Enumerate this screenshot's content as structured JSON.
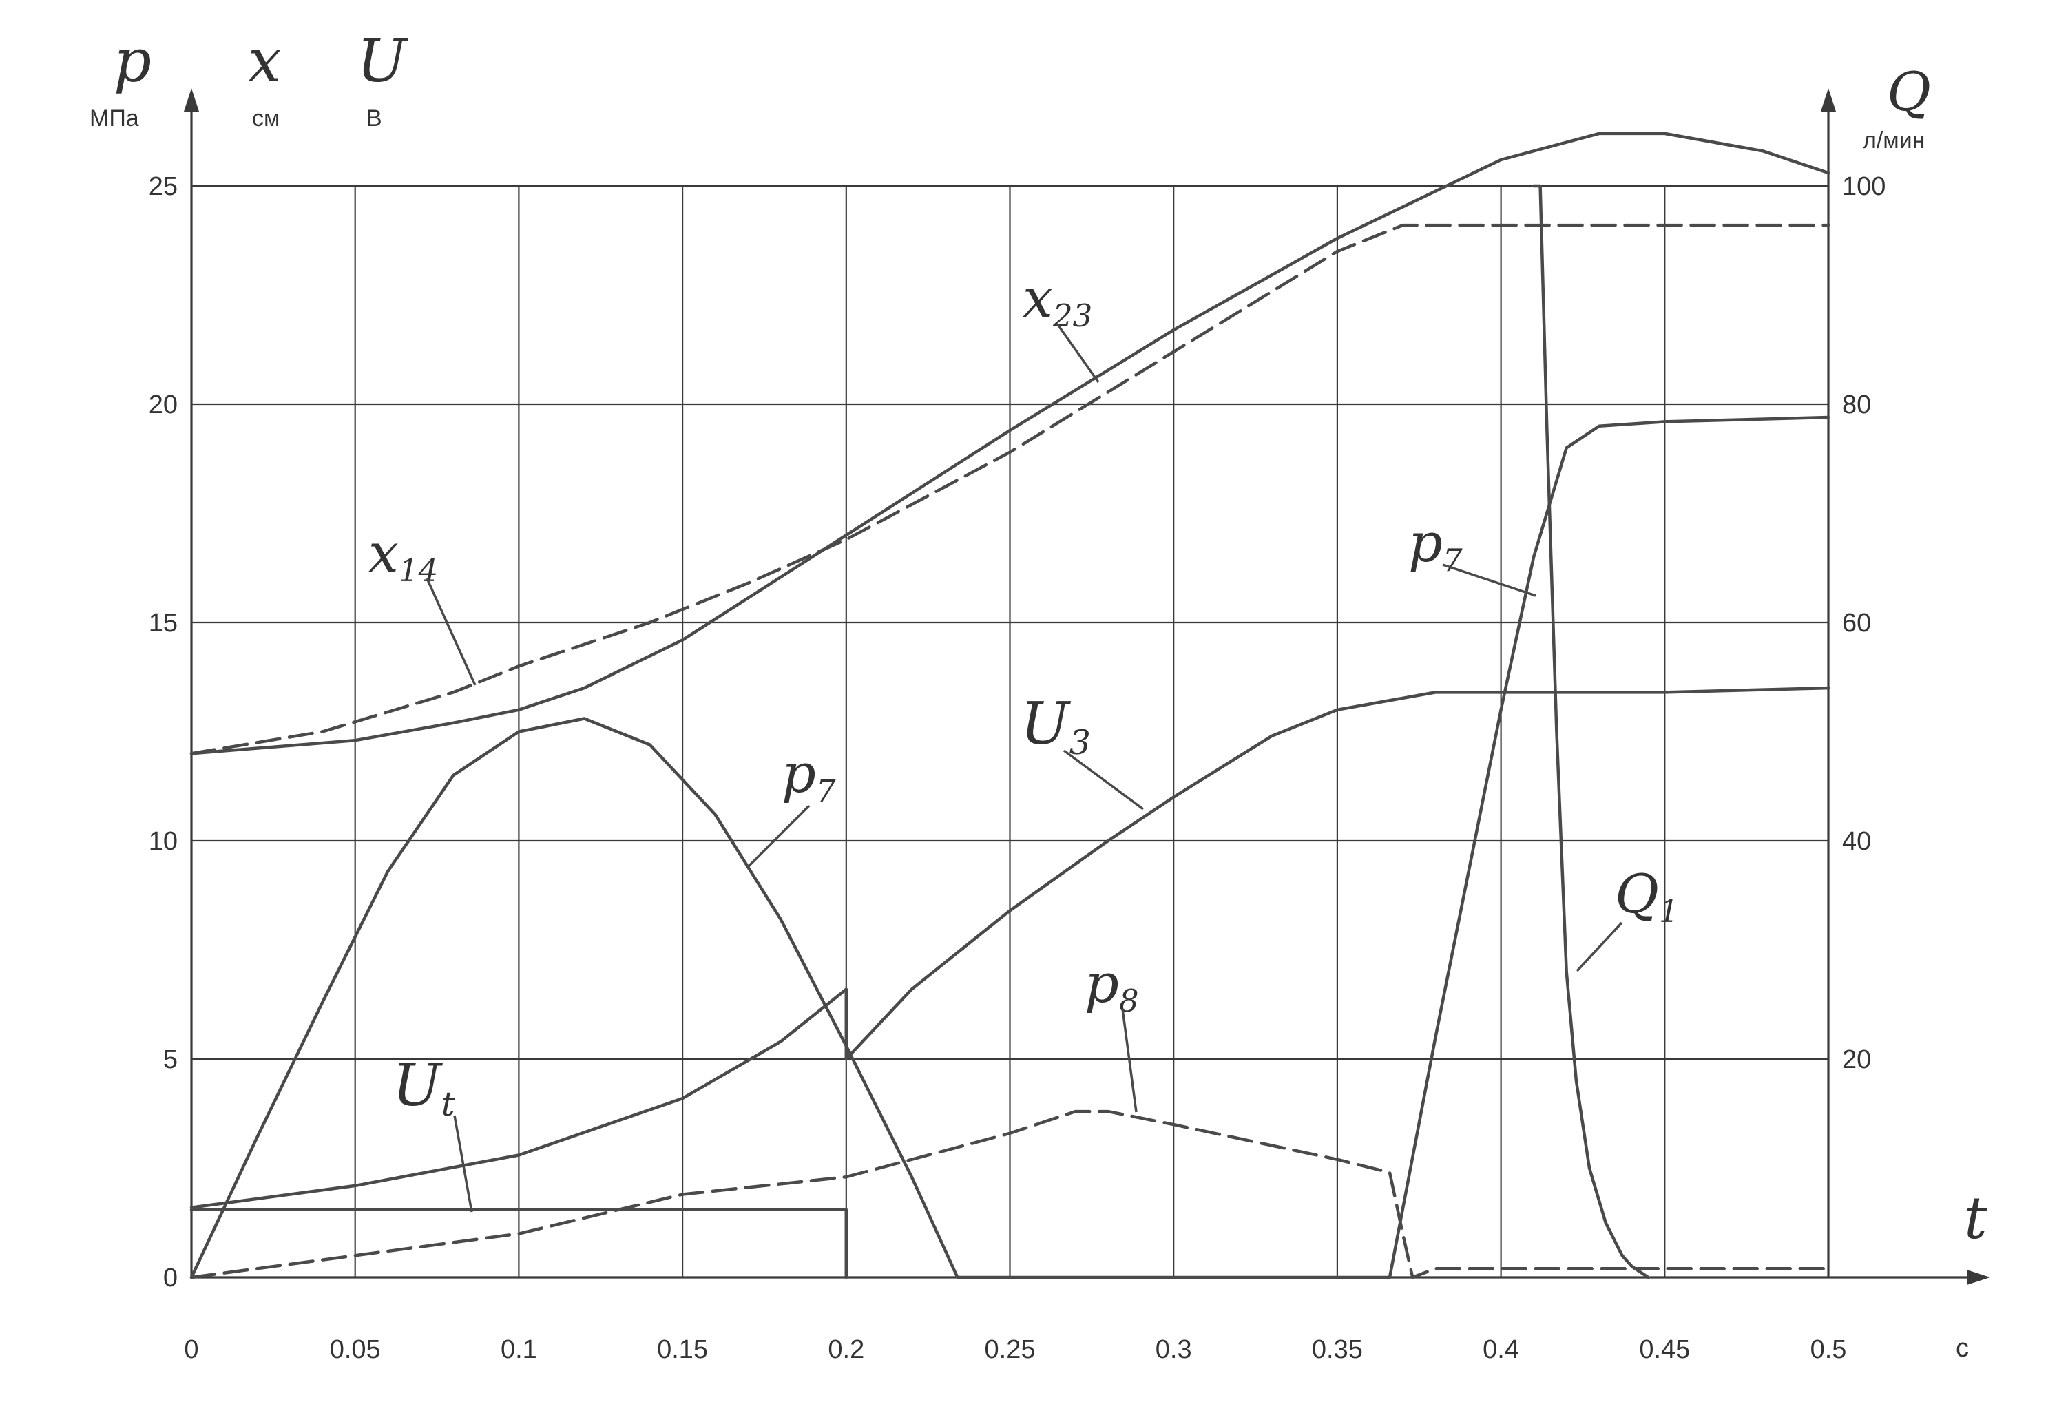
{
  "chart_data": {
    "type": "line",
    "xlabel": "t",
    "x_unit": "с",
    "xlim": [
      0,
      0.5
    ],
    "x_ticks": [
      "0",
      "0.05",
      "0.1",
      "0.15",
      "0.2",
      "0.25",
      "0.3",
      "0.35",
      "0.4",
      "0.45",
      "0.5"
    ],
    "left_axis": {
      "labels": [
        "p",
        "x",
        "U"
      ],
      "units": [
        "МПа",
        "см",
        "В"
      ],
      "ylim": [
        0,
        25
      ],
      "ticks": [
        "0",
        "5",
        "10",
        "15",
        "20",
        "25"
      ]
    },
    "right_axis": {
      "label": "Q",
      "unit": "л/мин",
      "ylim": [
        0,
        100
      ],
      "ticks": [
        "20",
        "40",
        "60",
        "80",
        "100"
      ]
    },
    "grid": true,
    "series": [
      {
        "name": "x23",
        "axis": "left",
        "style": "solid",
        "x": [
          0,
          0.05,
          0.08,
          0.1,
          0.12,
          0.15,
          0.2,
          0.25,
          0.3,
          0.35,
          0.4,
          0.43,
          0.45,
          0.48,
          0.5
        ],
        "y": [
          12.0,
          12.3,
          12.7,
          13.0,
          13.5,
          14.6,
          17.0,
          19.4,
          21.7,
          23.8,
          25.6,
          26.2,
          26.2,
          25.8,
          25.3
        ]
      },
      {
        "name": "x14",
        "axis": "left",
        "style": "dashed",
        "x": [
          0,
          0.04,
          0.08,
          0.1,
          0.14,
          0.17,
          0.2,
          0.25,
          0.3,
          0.35,
          0.37,
          0.4,
          0.45,
          0.5
        ],
        "y": [
          12.0,
          12.5,
          13.4,
          14.0,
          15.0,
          15.9,
          16.9,
          18.9,
          21.2,
          23.5,
          24.1,
          24.1,
          24.1,
          24.1
        ]
      },
      {
        "name": "p7",
        "axis": "left",
        "style": "solid",
        "x": [
          0,
          0.02,
          0.04,
          0.06,
          0.08,
          0.1,
          0.12,
          0.14,
          0.16,
          0.18,
          0.2,
          0.22,
          0.234,
          0.3,
          0.366,
          0.38,
          0.4,
          0.41,
          0.42,
          0.43,
          0.45,
          0.5
        ],
        "y": [
          0,
          3.2,
          6.3,
          9.3,
          11.5,
          12.5,
          12.8,
          12.2,
          10.6,
          8.2,
          5.3,
          2.3,
          0,
          0,
          0,
          5.5,
          13.0,
          16.5,
          19.0,
          19.5,
          19.6,
          19.7
        ]
      },
      {
        "name": "U3",
        "axis": "left",
        "style": "solid",
        "x": [
          0,
          0.05,
          0.1,
          0.15,
          0.18,
          0.2,
          0.2,
          0.22,
          0.25,
          0.28,
          0.3,
          0.33,
          0.35,
          0.38,
          0.4,
          0.45,
          0.5
        ],
        "y": [
          1.6,
          2.1,
          2.8,
          4.1,
          5.4,
          6.6,
          5.0,
          6.6,
          8.4,
          10.0,
          11.0,
          12.4,
          13.0,
          13.4,
          13.4,
          13.4,
          13.5
        ]
      },
      {
        "name": "Ut",
        "axis": "left",
        "style": "solid",
        "x": [
          0,
          0.2,
          0.2
        ],
        "y": [
          1.55,
          1.55,
          0
        ]
      },
      {
        "name": "p8",
        "axis": "left",
        "style": "dashed",
        "x": [
          0,
          0.05,
          0.1,
          0.15,
          0.2,
          0.25,
          0.27,
          0.28,
          0.3,
          0.35,
          0.366,
          0.37,
          0.373,
          0.38,
          0.45,
          0.5
        ],
        "y": [
          0,
          0.5,
          1.0,
          1.9,
          2.3,
          3.3,
          3.8,
          3.8,
          3.5,
          2.7,
          2.4,
          1.0,
          0,
          0.2,
          0.2,
          0.2
        ]
      },
      {
        "name": "Q1",
        "axis": "right",
        "style": "solid",
        "x": [
          0.41,
          0.412,
          0.414,
          0.417,
          0.42,
          0.423,
          0.427,
          0.432,
          0.437,
          0.44,
          0.445
        ],
        "y": [
          100,
          100,
          78,
          50,
          28,
          18,
          10,
          5,
          2,
          1,
          0
        ]
      }
    ],
    "annotations": [
      {
        "main": "x",
        "sub": "23"
      },
      {
        "main": "x",
        "sub": "14"
      },
      {
        "main": "p",
        "sub": "7"
      },
      {
        "main": "U",
        "sub": "3"
      },
      {
        "main": "p",
        "sub": "7"
      },
      {
        "main": "Q",
        "sub": "1"
      },
      {
        "main": "p",
        "sub": "8"
      },
      {
        "main": "U",
        "sub": "t"
      }
    ]
  }
}
